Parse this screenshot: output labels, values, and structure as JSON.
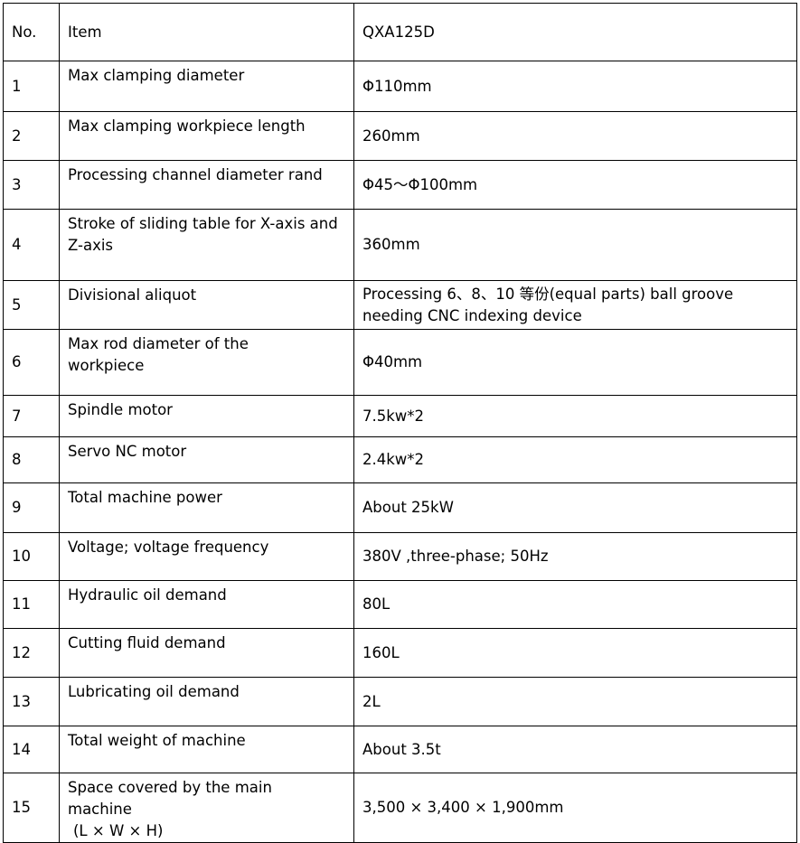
{
  "header": {
    "no": "No.",
    "item": "Item",
    "model": "QXA125D"
  },
  "rows": [
    {
      "no": "1",
      "item": "Max clamping diameter",
      "value": "Φ110mm"
    },
    {
      "no": "2",
      "item": "Max clamping workpiece length",
      "value": "260mm"
    },
    {
      "no": "3",
      "item": "Processing channel diameter rand",
      "value": "Φ45～Φ100mm"
    },
    {
      "no": "4",
      "item": "Stroke of sliding table for X-axis and Z-axis",
      "value": "360mm"
    },
    {
      "no": "5",
      "item": "Divisional aliquot",
      "value": "Processing 6、8、10 等份(equal parts) ball groove needing CNC indexing device"
    },
    {
      "no": "6",
      "item": "Max rod diameter of the workpiece",
      "value": "Φ40mm"
    },
    {
      "no": "7",
      "item": "Spindle motor",
      "value": "7.5kw*2"
    },
    {
      "no": "8",
      "item": "Servo NC motor",
      "value": "2.4kw*2"
    },
    {
      "no": "9",
      "item": "Total machine power",
      "value": "About 25kW"
    },
    {
      "no": "10",
      "item": "Voltage; voltage frequency",
      "value": "380V ,three-phase; 50Hz"
    },
    {
      "no": "11",
      "item": "Hydraulic oil demand",
      "value": "80L"
    },
    {
      "no": "12",
      "item": "Cutting fluid demand",
      "value": "160L"
    },
    {
      "no": "13",
      "item": "Lubricating oil demand",
      "value": "2L"
    },
    {
      "no": "14",
      "item": "Total weight of machine",
      "value": "About 3.5t"
    },
    {
      "no": "15",
      "item": "Space covered by the main machine",
      "item_extra": "(L × W × H)",
      "value": "3,500 × 3,400 × 1,900mm"
    }
  ]
}
